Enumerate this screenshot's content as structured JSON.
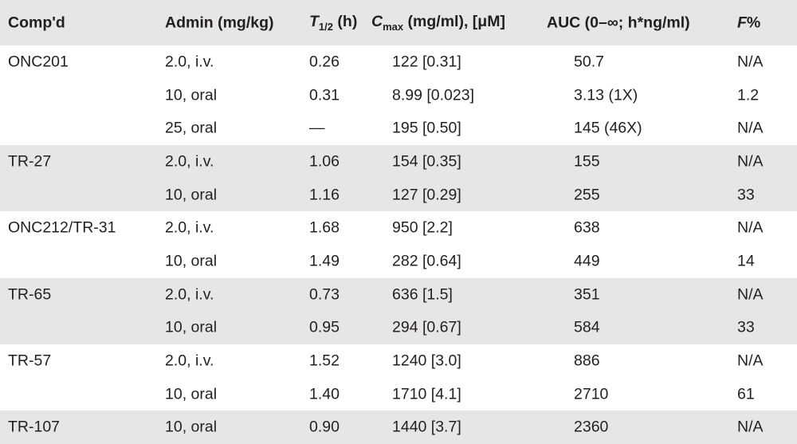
{
  "table": {
    "header": [
      {
        "text": "Comp'd"
      },
      {
        "text": "Admin (mg/kg)"
      },
      {
        "symbol": "T",
        "subscript": "1/2",
        "text": " (h)"
      },
      {
        "symbol": "C",
        "subscript": "max",
        "text": " (mg/ml), [μM]"
      },
      {
        "text": "AUC (0–∞; h*ng/ml)"
      },
      {
        "symbol": "F",
        "text": "%"
      }
    ],
    "groups": [
      {
        "compound": "ONC201",
        "rows": [
          [
            "2.0, i.v.",
            "0.26",
            "122 [0.31]",
            "50.7",
            "N/A"
          ],
          [
            "10, oral",
            "0.31",
            "8.99 [0.023]",
            "3.13 (1X)",
            "1.2"
          ],
          [
            "25, oral",
            "—",
            "195 [0.50]",
            "145 (46X)",
            "N/A"
          ]
        ]
      },
      {
        "compound": "TR-27",
        "rows": [
          [
            "2.0, i.v.",
            "1.06",
            "154 [0.35]",
            "155",
            "N/A"
          ],
          [
            "10, oral",
            "1.16",
            "127 [0.29]",
            "255",
            "33"
          ]
        ]
      },
      {
        "compound": "ONC212/TR-31",
        "rows": [
          [
            "2.0, i.v.",
            "1.68",
            "950 [2.2]",
            "638",
            "N/A"
          ],
          [
            "10, oral",
            "1.49",
            "282 [0.64]",
            "449",
            "14"
          ]
        ]
      },
      {
        "compound": "TR-65",
        "rows": [
          [
            "2.0, i.v.",
            "0.73",
            "636 [1.5]",
            "351",
            "N/A"
          ],
          [
            "10, oral",
            "0.95",
            "294 [0.67]",
            "584",
            "33"
          ]
        ]
      },
      {
        "compound": "TR-57",
        "rows": [
          [
            "2.0, i.v.",
            "1.52",
            "1240 [3.0]",
            "886",
            "N/A"
          ],
          [
            "10, oral",
            "1.40",
            "1710 [4.1]",
            "2710",
            "61"
          ]
        ]
      },
      {
        "compound": "TR-107",
        "rows": [
          [
            "10, oral",
            "0.90",
            "1440 [3.7]",
            "2360",
            "N/A"
          ]
        ]
      }
    ]
  }
}
